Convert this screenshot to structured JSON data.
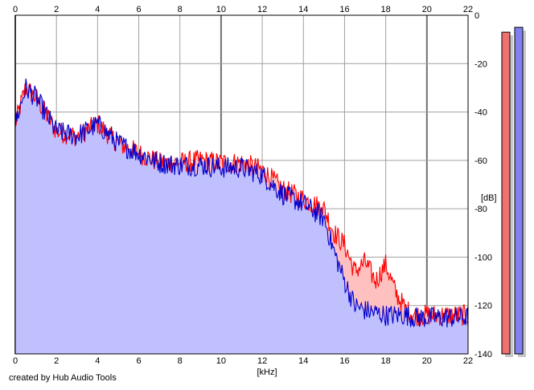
{
  "credit": "created by Hub Audio Tools",
  "colors": {
    "background": "#ffffff",
    "grid": "#a0a0a0",
    "grid_major": "#707070",
    "frame": "#000000",
    "series_a": "#ff0000",
    "series_a_fill": "#ffc0c0",
    "series_b": "#0000d0",
    "series_b_fill": "#c0c0ff",
    "meter_a": "#f07070",
    "meter_b": "#8080f0",
    "meter_shadow": "#c8c8c8"
  },
  "chart_data": {
    "type": "area",
    "xlabel": "[kHz]",
    "ylabel": "[dB]",
    "xlim": [
      0,
      22
    ],
    "ylim": [
      -140,
      0
    ],
    "x_ticks": [
      "0",
      "2",
      "4",
      "6",
      "8",
      "10",
      "12",
      "14",
      "16",
      "18",
      "20",
      "22"
    ],
    "y_ticks": [
      "0",
      "-20",
      "-40",
      "-60",
      "-80",
      "-100",
      "-120",
      "-140"
    ],
    "grid": true,
    "series": [
      {
        "color": "#ff0000",
        "x": [
          0,
          0.5,
          1,
          2,
          3,
          4,
          5,
          6,
          7,
          8,
          9,
          10,
          11,
          12,
          13,
          14,
          15,
          15.5,
          16,
          16.5,
          17,
          17.5,
          18,
          18.5,
          19,
          19.5,
          20,
          21,
          22
        ],
        "y": [
          -45,
          -30,
          -34,
          -48,
          -50,
          -45,
          -53,
          -57,
          -61,
          -61,
          -60,
          -61,
          -61,
          -64,
          -72,
          -76,
          -80,
          -90,
          -95,
          -106,
          -102,
          -110,
          -103,
          -115,
          -122,
          -124,
          -124,
          -124,
          -124
        ]
      },
      {
        "color": "#0000d0",
        "x": [
          0,
          0.5,
          1,
          2,
          3,
          4,
          5,
          6,
          7,
          8,
          9,
          10,
          11,
          12,
          13,
          14,
          15,
          15.5,
          16,
          16.5,
          17,
          17.5,
          18,
          18.5,
          19,
          19.5,
          20,
          21,
          22
        ],
        "y": [
          -45,
          -30,
          -34,
          -48,
          -50,
          -45,
          -53,
          -57,
          -61,
          -62,
          -62,
          -63,
          -63,
          -66,
          -74,
          -78,
          -84,
          -98,
          -110,
          -120,
          -122,
          -123,
          -124,
          -124,
          -124,
          -125,
          -125,
          -125,
          -125
        ]
      }
    ]
  },
  "meters": [
    {
      "color": "#f07070",
      "level": -7
    },
    {
      "color": "#8080f0",
      "level": -5
    }
  ]
}
